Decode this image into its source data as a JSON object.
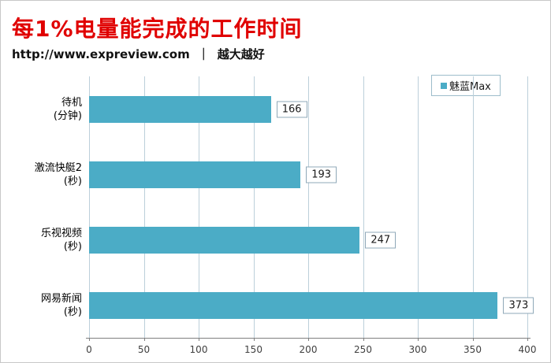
{
  "header": {
    "title": "每1%电量能完成的工作时间",
    "source_url": "http://www.expreview.com",
    "separator": "｜",
    "note": "越大越好"
  },
  "legend": {
    "label": "魅蓝Max"
  },
  "colors": {
    "bar": "#4BACC6",
    "title": "#E00000",
    "gridline": "#BCCFDA",
    "axis": "#808080",
    "value_box_border": "#8FA8B8",
    "legend_border": "#9DBDCB"
  },
  "chart_data": {
    "type": "bar",
    "orientation": "horizontal",
    "title": "每1%电量能完成的工作时间",
    "subtitle": "http://www.expreview.com ｜ 越大越好",
    "categories": [
      "待机 (分钟)",
      "激流快艇2 (秒)",
      "乐视视频 (秒)",
      "网易新闻 (秒)"
    ],
    "categories_display": [
      [
        "待机",
        "(分钟)"
      ],
      [
        "激流快艇2",
        "(秒)"
      ],
      [
        "乐视视频",
        "(秒)"
      ],
      [
        "网易新闻",
        "(秒)"
      ]
    ],
    "series": [
      {
        "name": "魅蓝Max",
        "values": [
          166,
          193,
          247,
          373
        ]
      }
    ],
    "xlim": [
      0,
      400
    ],
    "xticks": [
      0,
      50,
      100,
      150,
      200,
      250,
      300,
      350,
      400
    ],
    "grid": true,
    "data_labels": true,
    "legend_position": "top-right"
  }
}
